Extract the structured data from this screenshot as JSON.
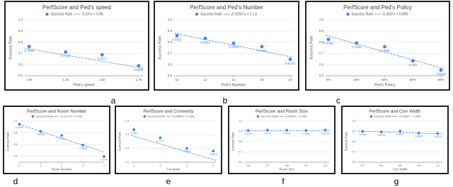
{
  "chart_data": [
    {
      "type": "scatter",
      "title": "PerfScore and Ped's speed",
      "label": "a",
      "x_label": "Ped's speed",
      "y_label": "Success Rate",
      "color": "#4285f4",
      "series": [
        {
          "name": "Success Rate",
          "x": [
            1,
            1.25,
            1.5,
            1.75
          ],
          "values": [
            0.7608,
            0.7124,
            0.6872,
            0.5895
          ]
        }
      ],
      "trendline": {
        "name": "-0.22*x + 0.96",
        "slope": -0.22,
        "intercept": 0.96
      },
      "xlim": [
        0.97,
        1.78
      ],
      "xticks": [
        {
          "value": 1,
          "label": "1.00"
        },
        1.25,
        {
          "value": 1.5,
          "label": "1.50"
        },
        1.75
      ],
      "ylim": [
        0.5,
        1
      ],
      "yticks": [
        0.5,
        0.6,
        0.7,
        0.8,
        0.9,
        {
          "value": 1,
          "label": "1.0"
        }
      ],
      "grid": true
    },
    {
      "type": "scatter",
      "title": "PerfScore and Ped's Number",
      "label": "b",
      "x_label": "Ped's Number",
      "y_label": "Success Rate",
      "color": "#4285f4",
      "series": [
        {
          "name": "Success Rate",
          "x": [
            10,
            12,
            14,
            16,
            18
          ],
          "values": [
            0.8581,
            0.8346,
            0.7916,
            0.7608,
            0.6473
          ]
        }
      ],
      "trendline": {
        "name": "-0.0255*x + 1.13",
        "slope": -0.0255,
        "intercept": 1.13
      },
      "xlim": [
        9.8,
        18.2
      ],
      "xticks": [
        10,
        12,
        14,
        16,
        18
      ],
      "ylim": [
        0.5,
        1
      ],
      "yticks": [
        0.5,
        0.6,
        0.7,
        0.8,
        0.9,
        {
          "value": 1,
          "label": "1.0"
        }
      ],
      "grid": true
    },
    {
      "type": "scatter",
      "title": "PerfScore and Ped's Policy",
      "label": "c",
      "x_label": "Ped's Policy",
      "y_label": "Success Rate",
      "color": "#4285f4",
      "series": [
        {
          "name": "Success Rate",
          "x": [
            0,
            0.2,
            0.4,
            0.6,
            0.8
          ],
          "values": [
            0.8258,
            0.7926,
            0.7599,
            0.634,
            0.5509
          ]
        }
      ],
      "trendline": {
        "name": "-0.355*x + 0.855",
        "slope": -0.355,
        "intercept": 0.855
      },
      "xlim": [
        -0.02,
        0.82
      ],
      "xticks": [
        {
          "value": 0,
          "label": "0%"
        },
        {
          "value": 0.2,
          "label": "20%"
        },
        {
          "value": 0.4,
          "label": "40%"
        },
        {
          "value": 0.6,
          "label": "60%"
        },
        {
          "value": 0.8,
          "label": "80%"
        }
      ],
      "ylim": [
        0.5,
        1
      ],
      "yticks": [
        0.5,
        0.6,
        0.7,
        0.8,
        0.9,
        {
          "value": 1,
          "label": "1.0"
        }
      ],
      "grid": true
    },
    {
      "type": "scatter",
      "title": "PerfScore and Room Number",
      "label": "d",
      "x_label": "Room Number",
      "y_label": "Success Rate",
      "color": "#4285f4",
      "series": [
        {
          "name": "Success Rate",
          "x": [
            0,
            1,
            2,
            3,
            4
          ],
          "values": [
            0.9454,
            0.8236,
            0.7542,
            0.5896,
            0.3975
          ]
        }
      ],
      "trendline": {
        "name": "-0.1171*x + 0.940",
        "slope": -0.1171,
        "intercept": 0.94
      },
      "xlim": [
        0,
        4
      ],
      "xticks": [
        0,
        1,
        2,
        3,
        4
      ],
      "ylim": [
        0.3,
        1
      ],
      "yticks": [
        0.4,
        0.6,
        0.8,
        {
          "value": 1,
          "label": "1.0"
        }
      ],
      "grid": true
    },
    {
      "type": "scatter",
      "title": "PerfScore and Convexity",
      "label": "e",
      "x_label": "Convexity",
      "y_label": "Success Rate",
      "color": "#4285f4",
      "series": [
        {
          "name": "Success Rate",
          "x": [
            1,
            2,
            3,
            4
          ],
          "values": [
            0.3367,
            0.2771,
            0.2006,
            0.1816
          ]
        }
      ],
      "trendline": {
        "name": "-0.0568*x + 0.346",
        "slope": -0.0568,
        "intercept": 0.346
      },
      "xlim": [
        0.9,
        4.1
      ],
      "xticks": [
        1,
        2,
        3,
        4
      ],
      "ylim": [
        0.1,
        0.4
      ],
      "yticks": [
        0.1,
        0.2,
        0.3,
        0.4
      ],
      "grid": true
    },
    {
      "type": "scatter",
      "title": "PerfScore and Room Size",
      "label": "f",
      "x_label": "Room Size",
      "y_label": "Success Rate",
      "color": "#4285f4",
      "series": [
        {
          "name": "Success Rate",
          "x": [
            0.6,
            0.7,
            0.8,
            0.9,
            1
          ],
          "values": [
            0.9076,
            0.9112,
            0.9108,
            0.9084,
            0.9116
          ]
        }
      ],
      "trendline": {
        "name": "0.0004*x + 0.908",
        "slope": 0.0004,
        "intercept": 0.908
      },
      "xlim": [
        0.58,
        1.02
      ],
      "xticks": [
        0.6,
        0.7,
        0.8,
        0.9,
        {
          "value": 1,
          "label": "1.0"
        }
      ],
      "ylim": [
        0.6,
        1
      ],
      "yticks": [
        0.6,
        0.7,
        0.8,
        0.9,
        {
          "value": 1,
          "label": "1.0"
        }
      ],
      "grid": true
    },
    {
      "type": "scatter",
      "title": "PerfScore and Corr Width",
      "label": "g",
      "x_label": "Corr Width",
      "y_label": "Success Rate",
      "color": "#4285f4",
      "series": [
        {
          "name": "Success Rate",
          "x": [
            0.2,
            0.4,
            0.6,
            0.8,
            1
          ],
          "values": [
            0.8996,
            0.8944,
            0.9012,
            0.8826,
            0.8792
          ]
        }
      ],
      "trendline": {
        "name": "-0.0285*x + 0.906",
        "slope": -0.0285,
        "intercept": 0.906
      },
      "xlim": [
        0.15,
        1.05
      ],
      "xticks": [
        0.2,
        0.4,
        0.6,
        0.8,
        {
          "value": 1,
          "label": "1.0"
        }
      ],
      "ylim": [
        0.6,
        1
      ],
      "yticks": [
        0.6,
        0.7,
        0.8,
        0.9,
        {
          "value": 1,
          "label": "1.0"
        }
      ],
      "grid": true
    }
  ]
}
